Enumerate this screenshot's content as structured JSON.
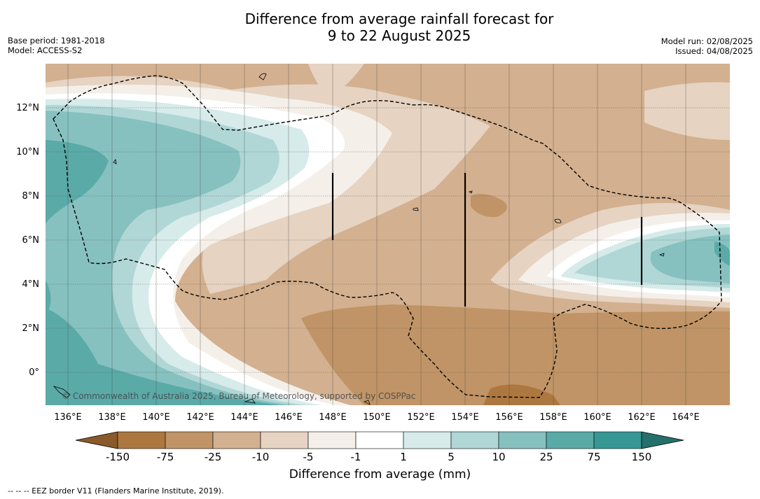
{
  "title_line1": "Difference from average rainfall forecast for",
  "title_line2": "9 to 22 August 2025",
  "base_period": "Base period: 1981-2018",
  "model": "Model: ACCESS-S2",
  "model_run": "Model run: 02/08/2025",
  "issued": "Issued: 04/08/2025",
  "copyright": "© Commonwealth of Australia 2025, Bureau of Meteorology, supported by COSPPac",
  "lat_labels": [
    "12°N",
    "10°N",
    "8°N",
    "6°N",
    "4°N",
    "2°N",
    "0°"
  ],
  "lon_labels": [
    "136°E",
    "138°E",
    "140°E",
    "142°E",
    "144°E",
    "146°E",
    "148°E",
    "150°E",
    "152°E",
    "154°E",
    "156°E",
    "158°E",
    "160°E",
    "162°E",
    "164°E"
  ],
  "colorbar": {
    "ticks": [
      "-150",
      "-75",
      "-25",
      "-10",
      "-5",
      "-1",
      "1",
      "5",
      "10",
      "25",
      "75",
      "150"
    ],
    "label": "Difference from average (mm)",
    "colors": {
      "lt_-150": "#8a5a2a",
      "-150_-75": "#ad7840",
      "-75_-25": "#c09466",
      "-25_-10": "#d3b08f",
      "-10_-5": "#e6d3c2",
      "-5_-1": "#f4efe9",
      "-1_1": "#ffffff",
      "1_5": "#d6ebea",
      "5_10": "#b0d7d6",
      "10_25": "#86c1c0",
      "25_75": "#5aaaa8",
      "75_150": "#359894",
      "gt_150": "#25706d"
    }
  },
  "footer": "--  --  -- EEZ border V11 (Flanders Marine Institute, 2019)."
}
